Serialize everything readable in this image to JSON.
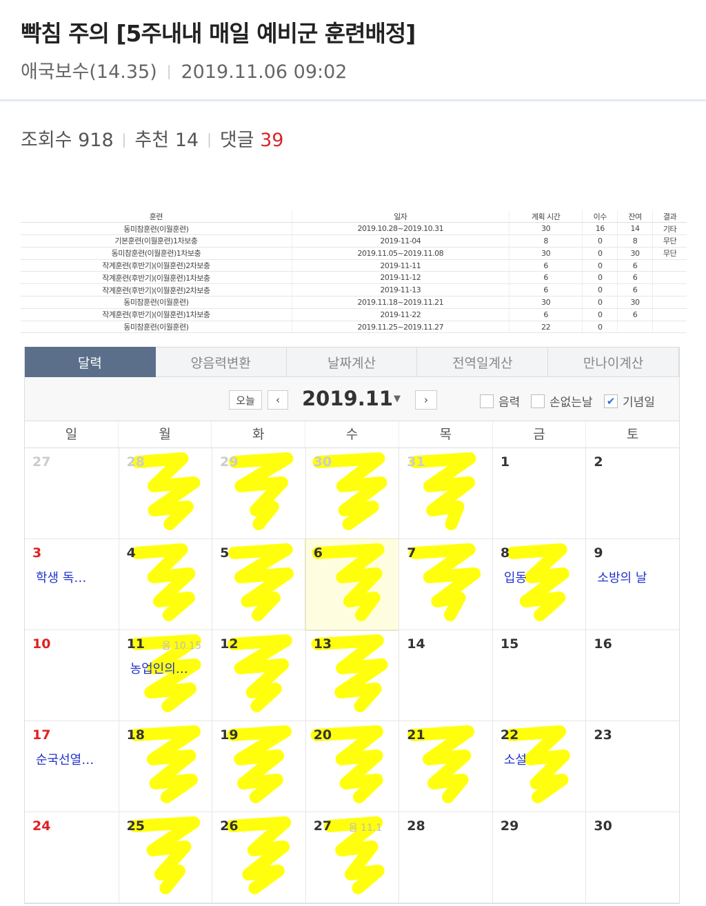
{
  "post": {
    "title": "빡침 주의 [5주내내 매일 예비군 훈련배정]",
    "author": "애국보수(14.35)",
    "datetime": "2019.11.06 09:02",
    "views_label": "조회수",
    "views": "918",
    "likes_label": "추천",
    "likes": "14",
    "comments_label": "댓글",
    "comments": "39"
  },
  "training_table": {
    "headers": [
      "훈련",
      "일자",
      "계획 시간",
      "이수",
      "잔여",
      "결과"
    ],
    "rows": [
      [
        "동미참훈련(이월훈련)",
        "2019.10.28~2019.10.31",
        "30",
        "16",
        "14",
        "기타"
      ],
      [
        "기본훈련(이월훈련)1차보충",
        "2019-11-04",
        "8",
        "0",
        "8",
        "무단"
      ],
      [
        "동미참훈련(이월훈련)1차보충",
        "2019.11.05~2019.11.08",
        "30",
        "0",
        "30",
        "무단"
      ],
      [
        "작계훈련(후반기)(이월훈련)2차보충",
        "2019-11-11",
        "6",
        "0",
        "6",
        ""
      ],
      [
        "작계훈련(후반기)(이월훈련)1차보충",
        "2019-11-12",
        "6",
        "0",
        "6",
        ""
      ],
      [
        "작계훈련(후반기)(이월훈련)2차보충",
        "2019-11-13",
        "6",
        "0",
        "6",
        ""
      ],
      [
        "동미참훈련(이월훈련)",
        "2019.11.18~2019.11.21",
        "30",
        "0",
        "30",
        ""
      ],
      [
        "작계훈련(후반기)(이월훈련)1차보충",
        "2019-11-22",
        "6",
        "0",
        "6",
        ""
      ],
      [
        "동미참훈련(이월훈련)",
        "2019.11.25~2019.11.27",
        "22",
        "0",
        "",
        ""
      ]
    ]
  },
  "calendar": {
    "tabs": [
      "달력",
      "양음력변환",
      "날짜계산",
      "전역일계산",
      "만나이계산"
    ],
    "today_label": "오늘",
    "prev": "‹",
    "next": "›",
    "month": "2019.11",
    "caret": "▼",
    "checks": [
      {
        "label": "음력",
        "checked": false
      },
      {
        "label": "손없는날",
        "checked": false
      },
      {
        "label": "기념일",
        "checked": true
      }
    ],
    "weekdays": [
      "일",
      "월",
      "화",
      "수",
      "목",
      "금",
      "토"
    ],
    "highlight_color": "#ffff00",
    "days": [
      {
        "n": "27",
        "other": true
      },
      {
        "n": "28",
        "other": true,
        "mark": true
      },
      {
        "n": "29",
        "other": true,
        "mark": true
      },
      {
        "n": "30",
        "other": true,
        "mark": true
      },
      {
        "n": "31",
        "other": true,
        "mark": true
      },
      {
        "n": "1"
      },
      {
        "n": "2"
      },
      {
        "n": "3",
        "ev": "학생 독…"
      },
      {
        "n": "4",
        "mark": true
      },
      {
        "n": "5",
        "mark": true
      },
      {
        "n": "6",
        "mark": true,
        "today": true
      },
      {
        "n": "7",
        "mark": true
      },
      {
        "n": "8",
        "ev": "입동",
        "mark": true
      },
      {
        "n": "9",
        "ev": "소방의 날"
      },
      {
        "n": "10"
      },
      {
        "n": "11",
        "lunar": "음 10.15",
        "ev": "농업인의…",
        "mark": true
      },
      {
        "n": "12",
        "mark": true
      },
      {
        "n": "13",
        "mark": true
      },
      {
        "n": "14"
      },
      {
        "n": "15"
      },
      {
        "n": "16"
      },
      {
        "n": "17",
        "ev": "순국선열…"
      },
      {
        "n": "18",
        "mark": true
      },
      {
        "n": "19",
        "mark": true
      },
      {
        "n": "20",
        "mark": true
      },
      {
        "n": "21",
        "mark": true
      },
      {
        "n": "22",
        "ev": "소설",
        "mark": true
      },
      {
        "n": "23"
      },
      {
        "n": "24"
      },
      {
        "n": "25",
        "mark": true
      },
      {
        "n": "26",
        "mark": true
      },
      {
        "n": "27",
        "lunar": "음 11.1",
        "mark": true
      },
      {
        "n": "28"
      },
      {
        "n": "29"
      },
      {
        "n": "30"
      }
    ]
  }
}
